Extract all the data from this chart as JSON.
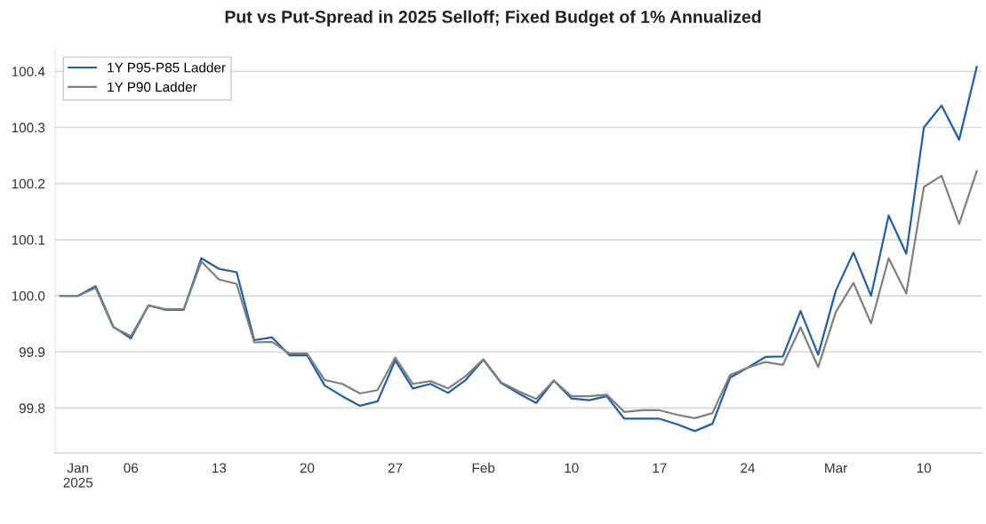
{
  "chart_data": {
    "type": "line",
    "title": "Put vs Put-Spread in 2025 Selloff; Fixed Budget of 1% Annualized",
    "categories": [
      null,
      "Jan\n2025",
      null,
      null,
      "06",
      null,
      null,
      null,
      null,
      "13",
      null,
      null,
      null,
      null,
      "20",
      null,
      null,
      null,
      null,
      "27",
      null,
      null,
      null,
      null,
      "Feb",
      null,
      null,
      null,
      null,
      "10",
      null,
      null,
      null,
      null,
      "17",
      null,
      null,
      null,
      null,
      "24",
      null,
      null,
      null,
      null,
      "Mar",
      null,
      null,
      null,
      null,
      "10",
      null,
      null,
      null
    ],
    "series": [
      {
        "name": "1Y P95-P85 Ladder",
        "color": "#1f5fad",
        "values": [
          100.0,
          100.0,
          100.017,
          99.945,
          99.924,
          99.983,
          99.975,
          99.975,
          100.067,
          100.048,
          100.042,
          99.921,
          99.926,
          99.894,
          99.894,
          99.84,
          99.821,
          99.804,
          99.812,
          99.885,
          99.835,
          99.843,
          99.827,
          99.85,
          99.886,
          99.845,
          99.826,
          99.809,
          99.849,
          99.817,
          99.814,
          99.821,
          99.781,
          99.781,
          99.781,
          99.771,
          99.759,
          99.772,
          99.854,
          99.872,
          99.891,
          99.892,
          99.973,
          99.895,
          100.009,
          100.077,
          100.0,
          100.143,
          100.075,
          100.3,
          100.339,
          100.278,
          100.408
        ]
      },
      {
        "name": "1Y P90 Ladder",
        "color": "#808080",
        "values": [
          100.0,
          100.0,
          100.014,
          99.944,
          99.928,
          99.983,
          99.976,
          99.976,
          100.061,
          100.029,
          100.021,
          99.917,
          99.918,
          99.897,
          99.897,
          99.85,
          99.843,
          99.826,
          99.832,
          99.89,
          99.843,
          99.848,
          99.835,
          99.857,
          99.887,
          99.846,
          99.83,
          99.816,
          99.849,
          99.821,
          99.821,
          99.824,
          99.793,
          99.796,
          99.796,
          99.788,
          99.782,
          99.791,
          99.859,
          99.872,
          99.882,
          99.877,
          99.944,
          99.873,
          99.971,
          100.023,
          99.951,
          100.067,
          100.004,
          100.194,
          100.214,
          100.128,
          100.222
        ]
      }
    ],
    "ylim": [
      99.72,
      100.44
    ],
    "yticks": [
      99.8,
      99.9,
      {
        "value": 100.0,
        "label": "100.0"
      },
      100.1,
      100.2,
      100.3,
      100.4
    ],
    "grid": "y",
    "legend": "top left",
    "marker": "none",
    "line_style": "solid"
  }
}
